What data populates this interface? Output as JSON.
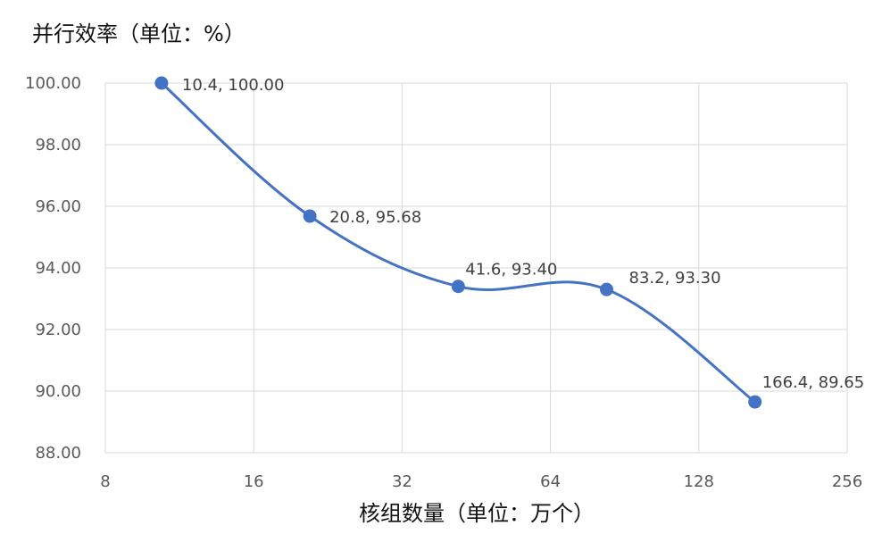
{
  "chart_data": {
    "type": "line",
    "title": "",
    "ylabel": "并行效率（单位：%）",
    "xlabel": "核组数量（单位：万个）",
    "x_scale": "log2",
    "xlim": [
      8,
      256
    ],
    "ylim": [
      88,
      100
    ],
    "xticks": [
      8,
      16,
      32,
      64,
      128,
      256
    ],
    "xtick_labels": [
      "8",
      "16",
      "32",
      "64",
      "128",
      "256"
    ],
    "yticks": [
      88,
      90,
      92,
      94,
      96,
      98,
      100
    ],
    "ytick_labels": [
      "88.00",
      "90.00",
      "92.00",
      "94.00",
      "96.00",
      "98.00",
      "100.00"
    ],
    "grid": true,
    "smooth": true,
    "series": [
      {
        "color": "#4472c4",
        "points": [
          {
            "x": 10.4,
            "y": 100.0,
            "label": "10.4, 100.00"
          },
          {
            "x": 20.8,
            "y": 95.68,
            "label": "20.8, 95.68"
          },
          {
            "x": 41.6,
            "y": 93.4,
            "label": "41.6, 93.40"
          },
          {
            "x": 83.2,
            "y": 93.3,
            "label": "83.2, 93.30"
          },
          {
            "x": 166.4,
            "y": 89.65,
            "label": "166.4, 89.65"
          }
        ]
      }
    ]
  }
}
